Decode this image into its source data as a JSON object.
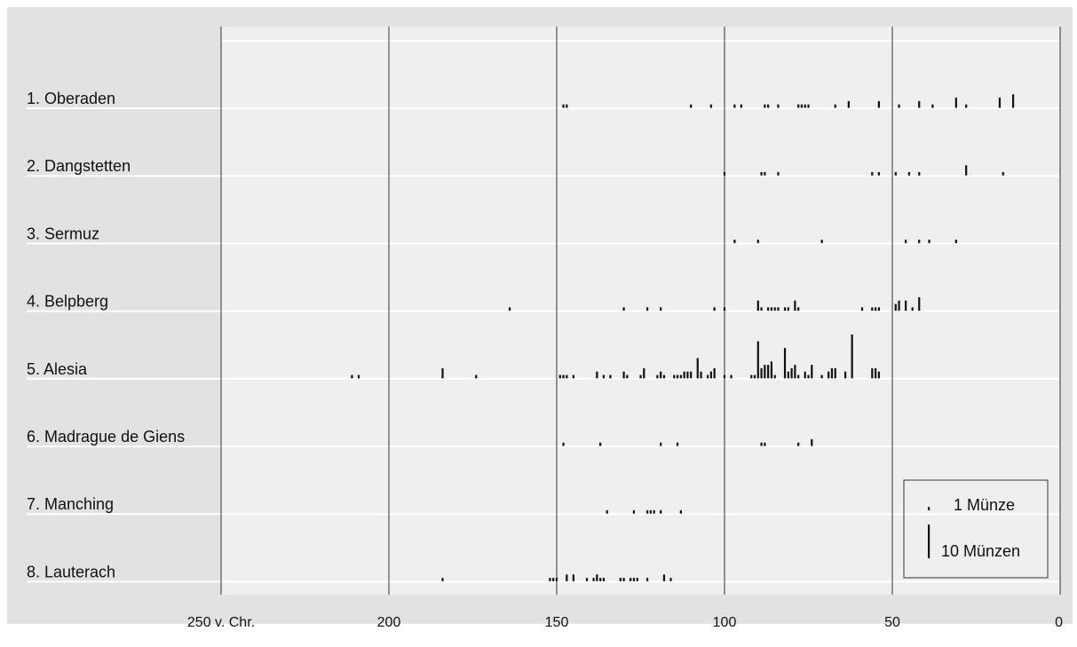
{
  "chart_data": {
    "type": "scatter",
    "xlim": [
      250,
      0
    ],
    "x_reversed": true,
    "grid": true,
    "ticks": [
      {
        "value": 250,
        "label": "250 v. Chr."
      },
      {
        "value": 200,
        "label": "200"
      },
      {
        "value": 150,
        "label": "150"
      },
      {
        "value": 100,
        "label": "100"
      },
      {
        "value": 50,
        "label": "50"
      },
      {
        "value": 0,
        "label": "0"
      }
    ],
    "legend": {
      "placement": "bottom-right",
      "entries": [
        {
          "label": "1 Münze",
          "count": 1
        },
        {
          "label": "10 Münzen",
          "count": 10
        }
      ]
    },
    "series": [
      {
        "name": "1. Oberaden",
        "points": [
          [
            148,
            1
          ],
          [
            147,
            1
          ],
          [
            110,
            1
          ],
          [
            104,
            1
          ],
          [
            97,
            1
          ],
          [
            95,
            1
          ],
          [
            88,
            1
          ],
          [
            87,
            1
          ],
          [
            84,
            1
          ],
          [
            78,
            1
          ],
          [
            77,
            1
          ],
          [
            76,
            1
          ],
          [
            75,
            1
          ],
          [
            67,
            1
          ],
          [
            63,
            2
          ],
          [
            54,
            2
          ],
          [
            48,
            1
          ],
          [
            42,
            2
          ],
          [
            38,
            1
          ],
          [
            31,
            3
          ],
          [
            28,
            1
          ],
          [
            18,
            3
          ],
          [
            14,
            4
          ]
        ]
      },
      {
        "name": "2. Dangstetten",
        "points": [
          [
            100,
            1
          ],
          [
            89,
            1
          ],
          [
            88,
            1
          ],
          [
            84,
            1
          ],
          [
            56,
            1
          ],
          [
            54,
            1
          ],
          [
            49,
            1
          ],
          [
            45,
            1
          ],
          [
            42,
            1
          ],
          [
            28,
            3
          ],
          [
            17,
            1
          ]
        ]
      },
      {
        "name": "3. Sermuz",
        "points": [
          [
            97,
            1
          ],
          [
            90,
            1
          ],
          [
            71,
            1
          ],
          [
            46,
            1
          ],
          [
            42,
            1
          ],
          [
            39,
            1
          ],
          [
            31,
            1
          ]
        ]
      },
      {
        "name": "4. Belpberg",
        "points": [
          [
            164,
            1
          ],
          [
            130,
            1
          ],
          [
            123,
            1
          ],
          [
            119,
            1
          ],
          [
            103,
            1
          ],
          [
            100,
            1
          ],
          [
            90,
            3
          ],
          [
            89,
            1
          ],
          [
            87,
            1
          ],
          [
            86,
            1
          ],
          [
            85,
            1
          ],
          [
            84,
            1
          ],
          [
            82,
            1
          ],
          [
            81,
            1
          ],
          [
            79,
            3
          ],
          [
            78,
            1
          ],
          [
            59,
            1
          ],
          [
            56,
            1
          ],
          [
            55,
            1
          ],
          [
            54,
            1
          ],
          [
            49,
            2
          ],
          [
            48,
            3
          ],
          [
            46,
            3
          ],
          [
            44,
            1
          ],
          [
            42,
            4
          ]
        ]
      },
      {
        "name": "5. Alesia",
        "points": [
          [
            211,
            1
          ],
          [
            209,
            1
          ],
          [
            184,
            3
          ],
          [
            174,
            1
          ],
          [
            149,
            1
          ],
          [
            148,
            1
          ],
          [
            147,
            1
          ],
          [
            145,
            1
          ],
          [
            138,
            2
          ],
          [
            136,
            1
          ],
          [
            134,
            1
          ],
          [
            130,
            2
          ],
          [
            129,
            1
          ],
          [
            125,
            1
          ],
          [
            124,
            3
          ],
          [
            120,
            1
          ],
          [
            119,
            2
          ],
          [
            118,
            1
          ],
          [
            115,
            1
          ],
          [
            114,
            1
          ],
          [
            113,
            1
          ],
          [
            112,
            2
          ],
          [
            111,
            2
          ],
          [
            110,
            2
          ],
          [
            108,
            6
          ],
          [
            107,
            2
          ],
          [
            105,
            1
          ],
          [
            104,
            2
          ],
          [
            103,
            3
          ],
          [
            100,
            1
          ],
          [
            98,
            1
          ],
          [
            92,
            1
          ],
          [
            91,
            1
          ],
          [
            90,
            11
          ],
          [
            89,
            3
          ],
          [
            88,
            4
          ],
          [
            87,
            4
          ],
          [
            86,
            5
          ],
          [
            85,
            1
          ],
          [
            82,
            9
          ],
          [
            81,
            2
          ],
          [
            80,
            3
          ],
          [
            79,
            4
          ],
          [
            78,
            1
          ],
          [
            76,
            2
          ],
          [
            75,
            1
          ],
          [
            74,
            4
          ],
          [
            71,
            1
          ],
          [
            69,
            2
          ],
          [
            68,
            3
          ],
          [
            67,
            3
          ],
          [
            64,
            2
          ],
          [
            62,
            13
          ],
          [
            56,
            3
          ],
          [
            55,
            3
          ],
          [
            54,
            2
          ]
        ]
      },
      {
        "name": "6. Madrague de Giens",
        "points": [
          [
            148,
            1
          ],
          [
            137,
            1
          ],
          [
            119,
            1
          ],
          [
            114,
            1
          ],
          [
            89,
            1
          ],
          [
            88,
            1
          ],
          [
            78,
            1
          ],
          [
            74,
            2
          ]
        ]
      },
      {
        "name": "7. Manching",
        "points": [
          [
            135,
            1
          ],
          [
            127,
            1
          ],
          [
            123,
            1
          ],
          [
            122,
            1
          ],
          [
            121,
            1
          ],
          [
            119,
            1
          ],
          [
            113,
            1
          ]
        ]
      },
      {
        "name": "8. Lauterach",
        "points": [
          [
            184,
            1
          ],
          [
            152,
            1
          ],
          [
            151,
            1
          ],
          [
            150,
            1
          ],
          [
            147,
            2
          ],
          [
            145,
            2
          ],
          [
            141,
            1
          ],
          [
            139,
            1
          ],
          [
            138,
            2
          ],
          [
            137,
            1
          ],
          [
            136,
            1
          ],
          [
            131,
            1
          ],
          [
            130,
            1
          ],
          [
            128,
            1
          ],
          [
            127,
            1
          ],
          [
            126,
            1
          ],
          [
            123,
            1
          ],
          [
            118,
            2
          ],
          [
            116,
            1
          ]
        ]
      }
    ]
  },
  "colors": {
    "plot_background": "#efefef",
    "outer_background": "#e2e2e2",
    "row_line": "#ffffff",
    "grid_line": "#333333",
    "mark": "#111111"
  }
}
